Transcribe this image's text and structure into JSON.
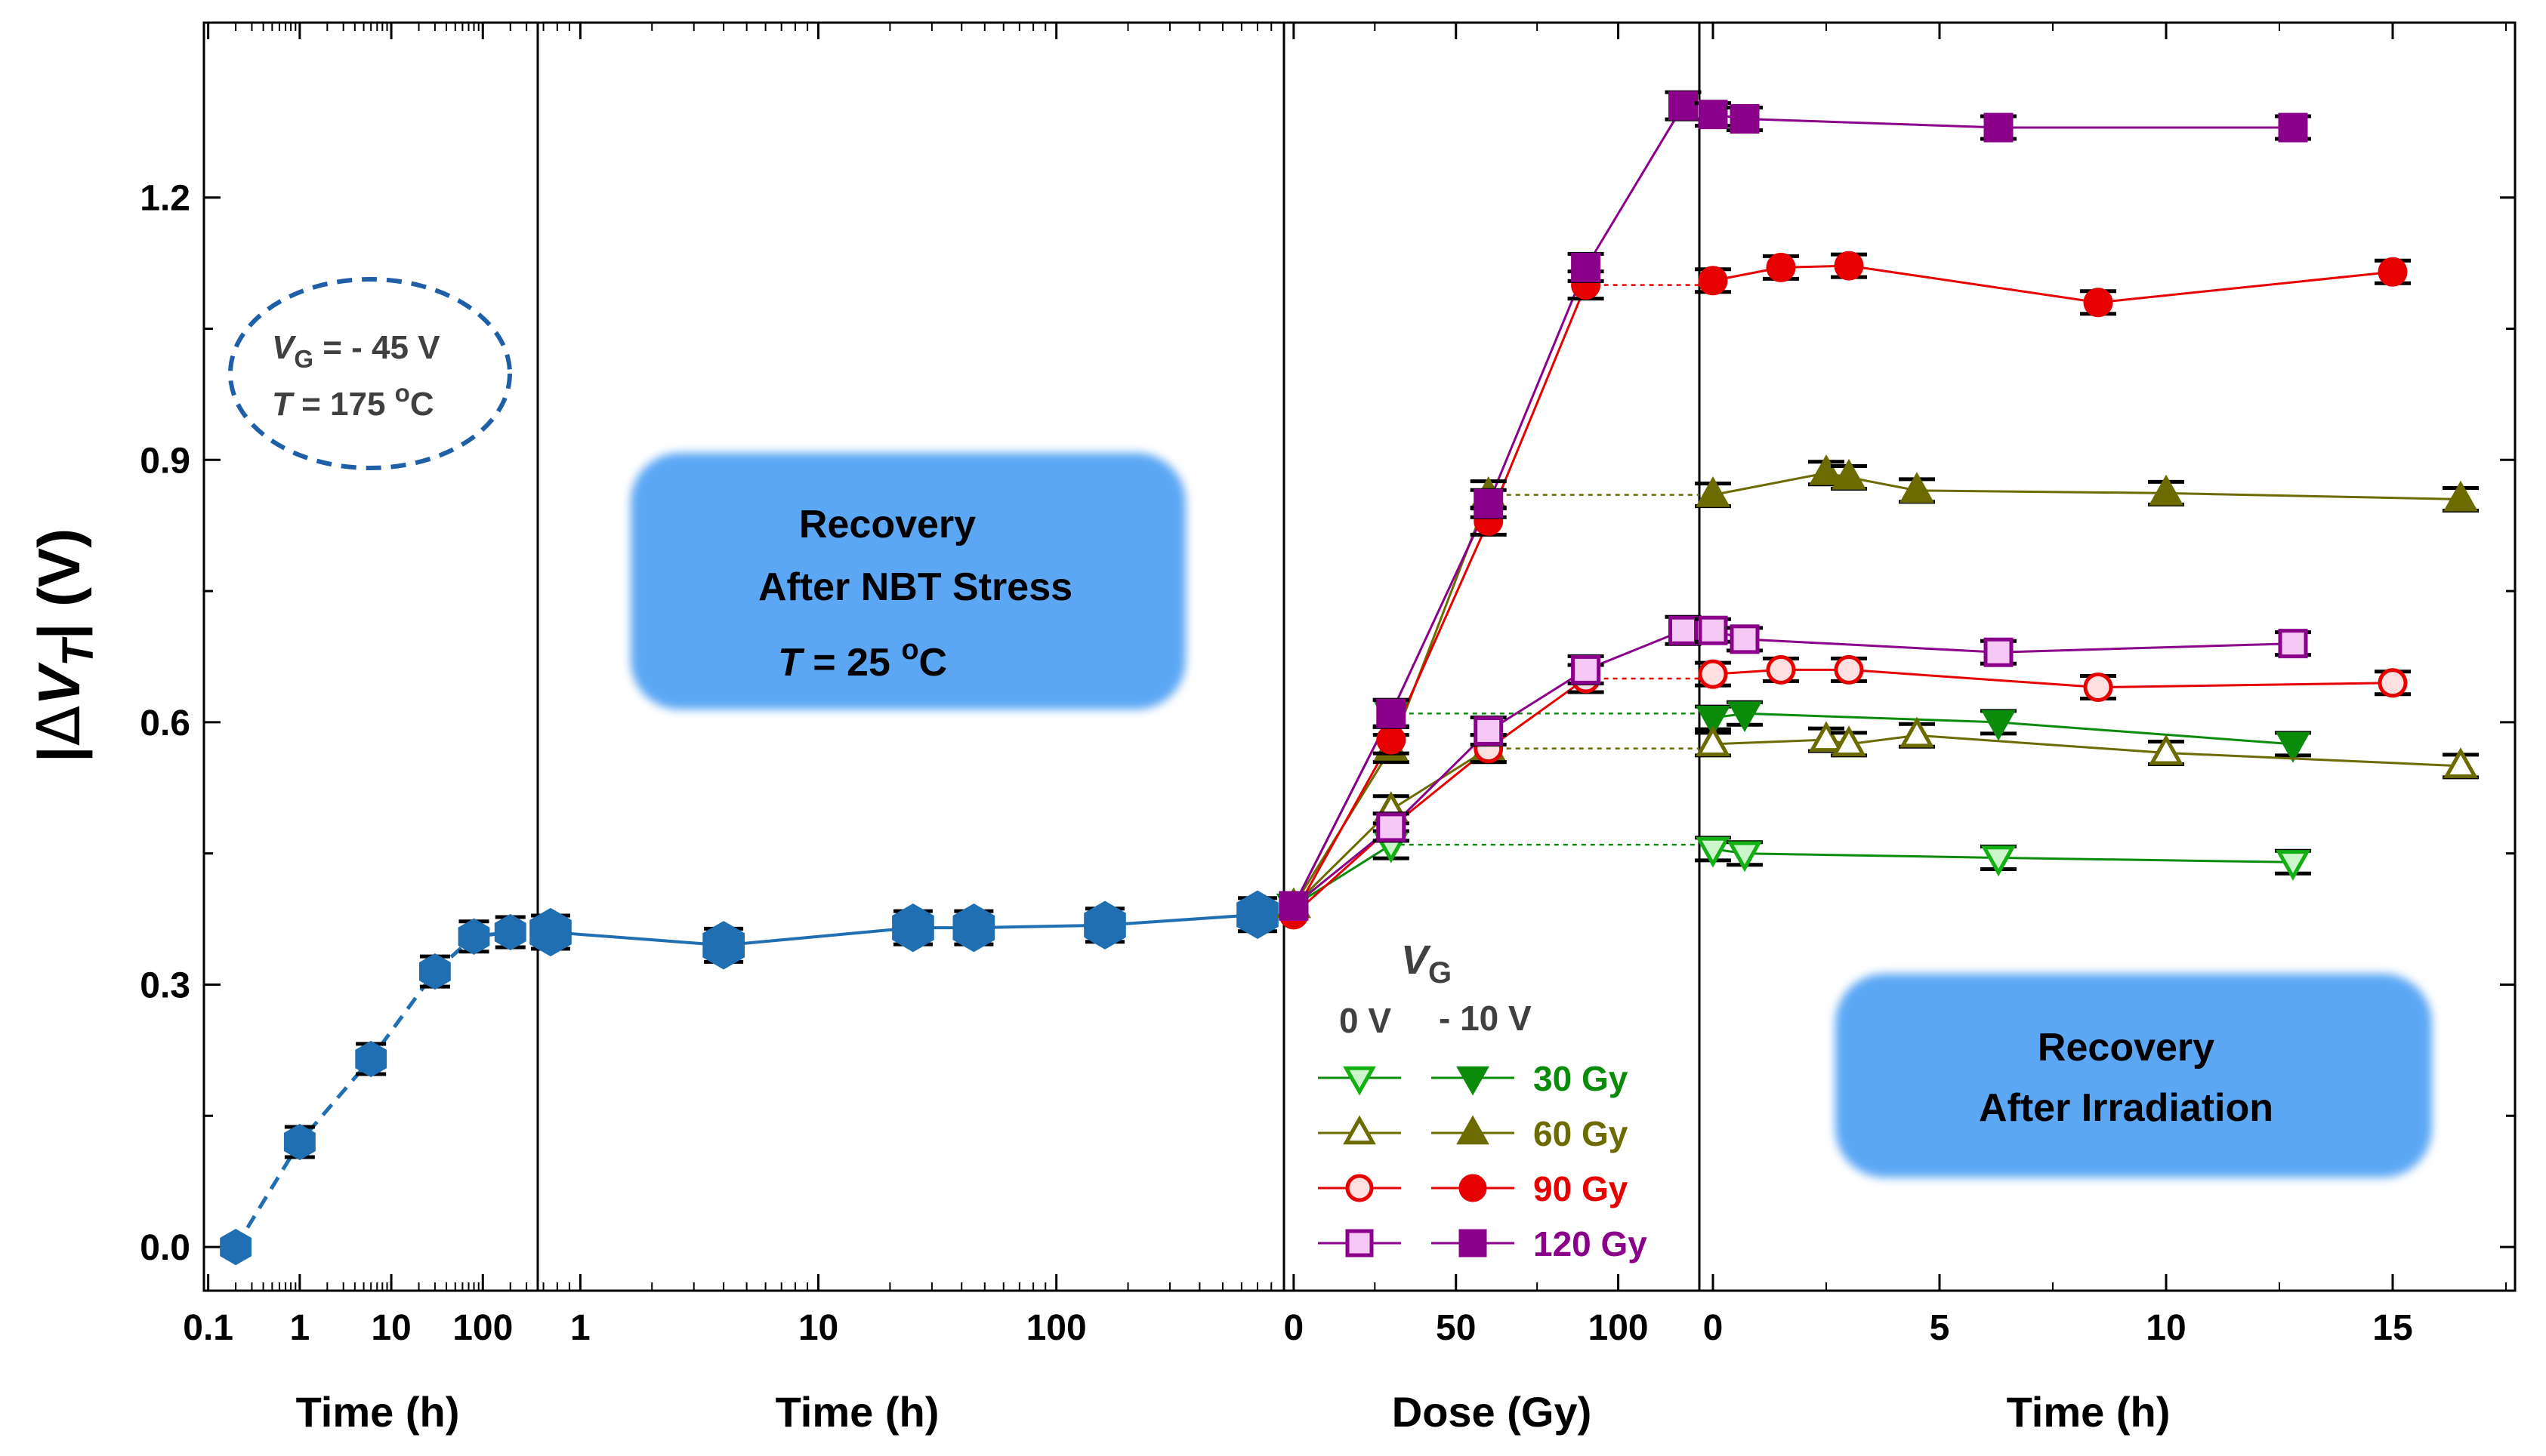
{
  "chart_data": [
    {
      "panel": "nbt-stress",
      "type": "scatter",
      "xscale": "log",
      "xlabel": "Time (h)",
      "ylabel": "|ΔV_T| (V)",
      "ylim": [
        -0.05,
        1.4
      ],
      "xtick_labels": [
        "0.1",
        "1",
        "10",
        "100"
      ],
      "ytick_labels": [
        "0.0",
        "0.3",
        "0.6",
        "0.9",
        "1.2"
      ],
      "annotation": {
        "line1_pre": "V",
        "line1_sub": "G",
        "line1_post": " = - 45 V",
        "line2_pre": "T",
        "line2_post": " = 175 ",
        "line2_sup": "o",
        "line2_end": "C"
      },
      "series": [
        {
          "x": [
            0.2,
            1,
            6,
            30,
            80,
            200
          ],
          "y": [
            0.0,
            0.12,
            0.215,
            0.315,
            0.355,
            0.36
          ]
        }
      ]
    },
    {
      "panel": "recovery-after-nbt",
      "type": "line",
      "xscale": "log",
      "xlabel": "Time (h)",
      "xtick_labels": [
        "1",
        "10",
        "100"
      ],
      "box_text": {
        "line1": "Recovery",
        "line2": "After NBT Stress",
        "line3_pre": "T",
        "line3_post": " = 25 ",
        "line3_sup": "o",
        "line3_end": "C"
      },
      "series": [
        {
          "x": [
            0.75,
            4,
            25,
            45,
            160,
            700
          ],
          "y": [
            0.36,
            0.345,
            0.365,
            0.365,
            0.368,
            0.38
          ]
        }
      ]
    },
    {
      "panel": "irradiation",
      "type": "line",
      "xlabel": "Dose (Gy)",
      "xlim": [
        -3,
        125
      ],
      "xtick_labels": [
        "0",
        "50",
        "100"
      ],
      "legend": {
        "title_main": "V",
        "title_sub": "G",
        "col_labels": [
          "0 V",
          "- 10 V"
        ],
        "entries": [
          {
            "label": "30 Gy",
            "color": "#0a8c0a"
          },
          {
            "label": "60 Gy",
            "color": "#6b6b00"
          },
          {
            "label": "90 Gy",
            "color": "#e60000"
          },
          {
            "label": "120 Gy",
            "color": "#8b008b"
          }
        ]
      },
      "series": [
        {
          "marker": "triangle-down",
          "fill": "open",
          "color": "#0a8c0a",
          "x": [
            0,
            30
          ],
          "y": [
            0.39,
            0.46
          ]
        },
        {
          "marker": "triangle-down",
          "fill": "filled",
          "color": "#0a8c0a",
          "x": [
            0,
            30
          ],
          "y": [
            0.39,
            0.61
          ]
        },
        {
          "marker": "triangle-up",
          "fill": "open",
          "color": "#6b6b00",
          "x": [
            0,
            30,
            60
          ],
          "y": [
            0.39,
            0.5,
            0.57
          ]
        },
        {
          "marker": "triangle-up",
          "fill": "filled",
          "color": "#6b6b00",
          "x": [
            0,
            30,
            60
          ],
          "y": [
            0.39,
            0.57,
            0.86
          ]
        },
        {
          "marker": "circle",
          "fill": "open",
          "color": "#e60000",
          "x": [
            0,
            30,
            60,
            90
          ],
          "y": [
            0.38,
            0.48,
            0.57,
            0.65
          ]
        },
        {
          "marker": "circle",
          "fill": "filled",
          "color": "#e60000",
          "x": [
            0,
            30,
            60,
            90
          ],
          "y": [
            0.38,
            0.58,
            0.83,
            1.1
          ]
        },
        {
          "marker": "square",
          "fill": "open",
          "color": "#8b008b",
          "x": [
            0,
            30,
            60,
            90,
            120
          ],
          "y": [
            0.39,
            0.48,
            0.59,
            0.66,
            0.705
          ]
        },
        {
          "marker": "square",
          "fill": "filled",
          "color": "#8b008b",
          "x": [
            0,
            30,
            60,
            90,
            120
          ],
          "y": [
            0.39,
            0.61,
            0.85,
            1.12,
            1.305
          ]
        }
      ]
    },
    {
      "panel": "recovery-after-irradiation",
      "type": "line",
      "xlabel": "Time (h)",
      "xlim": [
        -0.3,
        17.7
      ],
      "xtick_labels": [
        "0",
        "5",
        "10",
        "15"
      ],
      "box_text": {
        "line1": "Recovery",
        "line2": "After Irradiation"
      },
      "series": [
        {
          "marker": "square",
          "fill": "filled",
          "color": "#8b008b",
          "x": [
            0,
            0.7,
            6.3,
            12.8
          ],
          "y": [
            1.295,
            1.29,
            1.28,
            1.28
          ]
        },
        {
          "marker": "circle",
          "fill": "filled",
          "color": "#e60000",
          "x": [
            0,
            1.5,
            3,
            8.5,
            15
          ],
          "y": [
            1.105,
            1.12,
            1.122,
            1.08,
            1.115
          ]
        },
        {
          "marker": "triangle-up",
          "fill": "filled",
          "color": "#6b6b00",
          "x": [
            0,
            2.5,
            3,
            4.5,
            10,
            16.5
          ],
          "y": [
            0.86,
            0.885,
            0.88,
            0.865,
            0.862,
            0.855
          ]
        },
        {
          "marker": "square",
          "fill": "open",
          "color": "#8b008b",
          "x": [
            0,
            0.7,
            6.3,
            12.8
          ],
          "y": [
            0.705,
            0.695,
            0.68,
            0.69
          ]
        },
        {
          "marker": "circle",
          "fill": "open",
          "color": "#e60000",
          "x": [
            0,
            1.5,
            3,
            8.5,
            15
          ],
          "y": [
            0.655,
            0.66,
            0.66,
            0.64,
            0.645
          ]
        },
        {
          "marker": "triangle-down",
          "fill": "filled",
          "color": "#0a8c0a",
          "x": [
            0,
            0.7,
            6.3,
            12.8
          ],
          "y": [
            0.605,
            0.61,
            0.6,
            0.575
          ]
        },
        {
          "marker": "triangle-up",
          "fill": "open",
          "color": "#6b6b00",
          "x": [
            0,
            2.5,
            3,
            4.5,
            10,
            16.5
          ],
          "y": [
            0.575,
            0.58,
            0.575,
            0.585,
            0.565,
            0.55
          ]
        },
        {
          "marker": "triangle-down",
          "fill": "open",
          "color": "#0a8c0a",
          "x": [
            0,
            0.7,
            6.3,
            12.8
          ],
          "y": [
            0.455,
            0.45,
            0.445,
            0.44
          ]
        }
      ]
    }
  ],
  "colors": {
    "stress_marker": "#1f6fb2",
    "box_fill": "#5ba7f4",
    "ellipse_stroke": "#1f5fa8"
  }
}
